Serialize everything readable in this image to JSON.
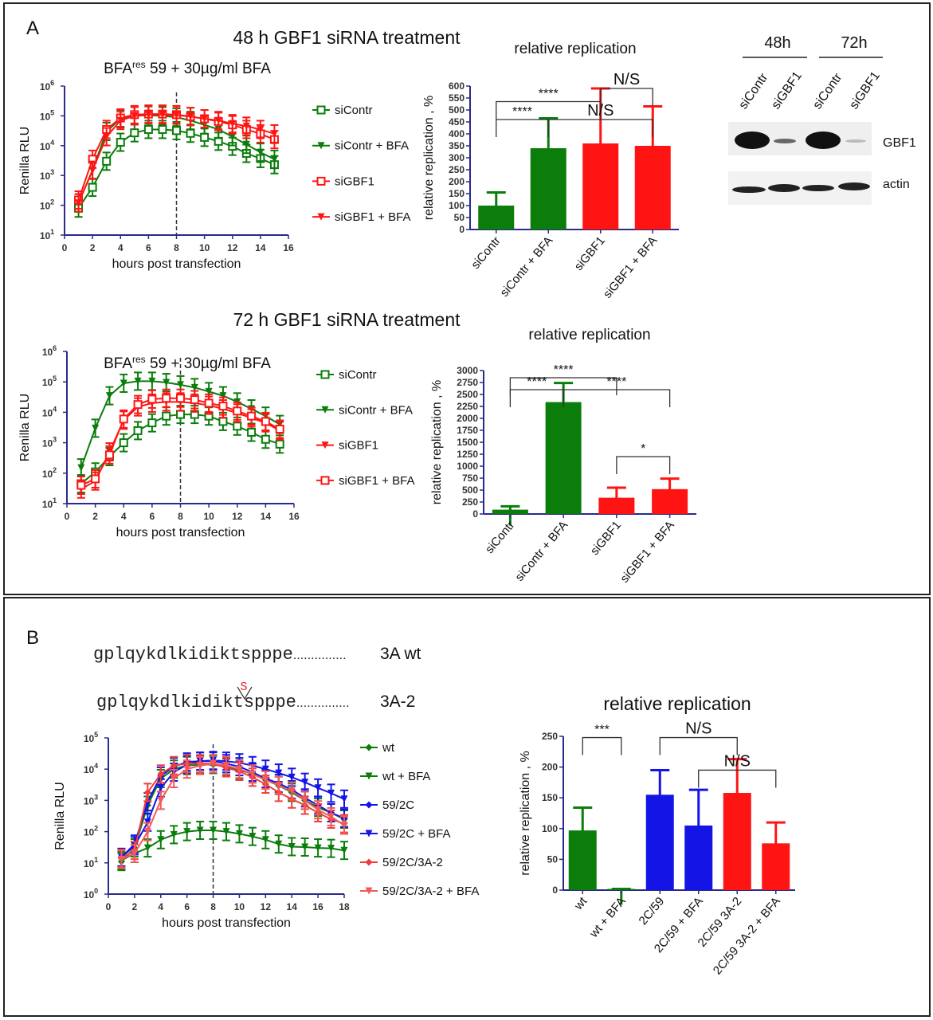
{
  "figure": {
    "panel_a_label": "A",
    "panel_b_label": "B",
    "title_48h": "48 h GBF1 siRNA treatment",
    "title_72h": "72 h GBF1 siRNA treatment",
    "colors": {
      "green": "#0a7d0a",
      "red": "#ff1414",
      "blue": "#1414e6",
      "light_red": "#f25050",
      "axis": "#2a2a8a"
    }
  },
  "western_blot": {
    "time_labels": [
      "48h",
      "72h"
    ],
    "lane_labels": [
      "siContr",
      "siGBF1",
      "siContr",
      "siGBF1"
    ],
    "row_labels": [
      "GBF1",
      "actin"
    ]
  },
  "sequences": {
    "wt_sequence": "gplqykdlkidiktspppe...............",
    "wt_label": "3A wt",
    "mut_prefix": "gplqykdlkidikt",
    "mut_insertion": "S",
    "mut_suffix": "spppe...............",
    "mut_label": "3A-2"
  },
  "chart_data": [
    {
      "type": "line",
      "title": "BFA",
      "title_sup": "res",
      "title_rest": " 59 + 30µg/ml BFA",
      "xlabel": "hours post transfection",
      "ylabel": "Renilla RLU",
      "xlim": [
        0,
        16
      ],
      "xticks": [
        0,
        2,
        4,
        6,
        8,
        10,
        12,
        14,
        16
      ],
      "ylim": [
        10,
        1000000
      ],
      "yscale": "log",
      "yticks_exp": [
        1,
        2,
        3,
        4,
        5,
        6
      ],
      "vline_x": 8,
      "x": [
        1,
        2,
        3,
        4,
        5,
        6,
        7,
        8,
        9,
        10,
        11,
        12,
        13,
        14,
        15
      ],
      "series": [
        {
          "name": "siContr",
          "color": "#0a7d0a",
          "marker": "square-open",
          "values": [
            80,
            400,
            3000,
            13000,
            27000,
            35000,
            35000,
            32000,
            26000,
            19000,
            14000,
            9500,
            5500,
            3700,
            2300
          ]
        },
        {
          "name": "siContr + BFA",
          "color": "#0a7d0a",
          "marker": "triangle-down",
          "values": [
            120,
            1500,
            30000,
            80000,
            100000,
            105000,
            100000,
            90000,
            70000,
            50000,
            35000,
            20000,
            11000,
            6000,
            3500
          ]
        },
        {
          "name": "siGBF1",
          "color": "#ff1414",
          "marker": "square-open",
          "values": [
            150,
            3500,
            35000,
            85000,
            110000,
            115000,
            115000,
            110000,
            95000,
            80000,
            65000,
            50000,
            35000,
            25000,
            16000
          ]
        },
        {
          "name": "siGBF1 + BFA",
          "color": "#ff1414",
          "marker": "triangle-down",
          "values": [
            120,
            1500,
            20000,
            70000,
            100000,
            110000,
            110000,
            105000,
            95000,
            80000,
            70000,
            55000,
            45000,
            35000,
            25000
          ]
        }
      ]
    },
    {
      "type": "bar",
      "title": "relative replication",
      "ylabel": "relative replication , %",
      "ylim": [
        0,
        600
      ],
      "ytick_step": 50,
      "categories": [
        "siContr",
        "siContr + BFA",
        "siGBF1",
        "siGBF1 + BFA"
      ],
      "colors": [
        "#0a7d0a",
        "#0a7d0a",
        "#ff1414",
        "#ff1414"
      ],
      "values": [
        100,
        340,
        360,
        350
      ],
      "error_upper": [
        155,
        465,
        590,
        515
      ],
      "significance": [
        {
          "from": 0,
          "to": 1,
          "level": 460,
          "label": "****"
        },
        {
          "from": 0,
          "to": 2,
          "level": 535,
          "label": "****"
        },
        {
          "from": 1,
          "to": 3,
          "level": 460,
          "label": "N/S"
        },
        {
          "from": 2,
          "to": 3,
          "level": 590,
          "label": "N/S"
        }
      ]
    },
    {
      "type": "line",
      "title": "BFA",
      "title_sup": "res",
      "title_rest": " 59 + 30µg/ml BFA",
      "xlabel": "hours post transfection",
      "ylabel": "Renilla RLU",
      "xlim": [
        0,
        16
      ],
      "xticks": [
        0,
        2,
        4,
        6,
        8,
        10,
        12,
        14,
        16
      ],
      "ylim": [
        10,
        1000000
      ],
      "yscale": "log",
      "yticks_exp": [
        1,
        2,
        3,
        4,
        5,
        6
      ],
      "vline_x": 8,
      "x": [
        1,
        2,
        3,
        4,
        5,
        6,
        7,
        8,
        9,
        10,
        11,
        12,
        13,
        14,
        15
      ],
      "series": [
        {
          "name": "siContr",
          "color": "#0a7d0a",
          "marker": "square-open",
          "values": [
            45,
            110,
            350,
            1000,
            2500,
            4500,
            7500,
            8500,
            8500,
            7500,
            5000,
            3500,
            2200,
            1300,
            900
          ]
        },
        {
          "name": "siContr + BFA",
          "color": "#0a7d0a",
          "marker": "triangle-down",
          "values": [
            150,
            3000,
            35000,
            90000,
            105000,
            105000,
            95000,
            80000,
            65000,
            48000,
            35000,
            22000,
            13000,
            7500,
            4000
          ]
        },
        {
          "name": "siGBF1",
          "color": "#ff1414",
          "marker": "triangle-down",
          "values": [
            30,
            55,
            500,
            5500,
            15000,
            20000,
            22000,
            22000,
            20000,
            17000,
            13000,
            9500,
            6500,
            4500,
            2500
          ]
        },
        {
          "name": "siGBF1 + BFA",
          "color": "#ff1414",
          "marker": "square-open",
          "values": [
            40,
            65,
            400,
            6000,
            18000,
            27000,
            29000,
            29000,
            26000,
            20000,
            16000,
            11000,
            7500,
            5000,
            2800
          ]
        }
      ]
    },
    {
      "type": "bar",
      "title": "relative replication",
      "ylabel": "relative replication , %",
      "ylim": [
        0,
        3000
      ],
      "ytick_step": 250,
      "categories": [
        "siContr",
        "siContr + BFA",
        "siGBF1",
        "siGBF1 + BFA"
      ],
      "colors": [
        "#0a7d0a",
        "#0a7d0a",
        "#ff1414",
        "#ff1414"
      ],
      "values": [
        90,
        2340,
        340,
        520
      ],
      "error_upper": [
        160,
        2740,
        550,
        740
      ],
      "significance": [
        {
          "from": 0,
          "to": 2,
          "level": 2850,
          "label": "****"
        },
        {
          "from": 0,
          "to": 1,
          "level": 2600,
          "label": "****"
        },
        {
          "from": 1,
          "to": 3,
          "level": 2600,
          "label": "****"
        },
        {
          "from": 2,
          "to": 3,
          "level": 1200,
          "label": "*"
        }
      ]
    },
    {
      "type": "line",
      "xlabel": "hours post transfection",
      "ylabel": "Renilla RLU",
      "xlim": [
        0,
        18
      ],
      "xticks": [
        0,
        2,
        4,
        6,
        8,
        10,
        12,
        14,
        16,
        18
      ],
      "ylim": [
        1,
        100000
      ],
      "yscale": "log",
      "yticks_exp": [
        0,
        1,
        2,
        3,
        4,
        5
      ],
      "vline_x": 8,
      "x": [
        1,
        2,
        3,
        4,
        5,
        6,
        7,
        8,
        9,
        10,
        11,
        12,
        13,
        14,
        15,
        16,
        17,
        18
      ],
      "series": [
        {
          "name": "wt",
          "color": "#0a7d0a",
          "marker": "diamond",
          "values": [
            11,
            30,
            700,
            5000,
            10000,
            13000,
            14000,
            14000,
            12000,
            9500,
            7000,
            4500,
            3000,
            1800,
            1000,
            600,
            400,
            250
          ]
        },
        {
          "name": "wt + BFA",
          "color": "#0a7d0a",
          "marker": "triangle-down",
          "values": [
            12,
            20,
            30,
            55,
            80,
            100,
            110,
            110,
            100,
            85,
            70,
            55,
            40,
            33,
            32,
            30,
            29,
            25
          ]
        },
        {
          "name": "59/2C",
          "color": "#1414e6",
          "marker": "diamond",
          "values": [
            15,
            40,
            900,
            6000,
            12000,
            17000,
            18000,
            18000,
            15000,
            12000,
            8000,
            5000,
            3500,
            2200,
            1200,
            700,
            400,
            270
          ]
        },
        {
          "name": "59/2C + BFA",
          "color": "#1414e6",
          "marker": "triangle-down",
          "values": [
            15,
            35,
            200,
            2500,
            8000,
            14000,
            18000,
            19000,
            18000,
            16000,
            13000,
            10000,
            7500,
            5500,
            3800,
            2500,
            1700,
            1100
          ]
        },
        {
          "name": "59/2C/3A-2",
          "color": "#f23c3c",
          "marker": "diamond",
          "values": [
            14,
            25,
            1800,
            7000,
            13000,
            15000,
            15000,
            15000,
            11000,
            8500,
            5500,
            3300,
            1800,
            1100,
            700,
            400,
            250,
            180
          ]
        },
        {
          "name": "59/2C/3A-2 + BFA",
          "color": "#f25a5a",
          "marker": "triangle-down",
          "values": [
            13,
            20,
            100,
            1000,
            5000,
            10000,
            13000,
            15000,
            13000,
            10000,
            7000,
            4500,
            3000,
            2000,
            1000,
            500,
            300,
            160
          ]
        }
      ]
    },
    {
      "type": "bar",
      "title": "relative replication",
      "ylabel": "relative replication , %",
      "ylim": [
        0,
        250
      ],
      "ytick_step": 50,
      "categories": [
        "wt",
        "wt + BFA",
        "2C/59",
        "2C/59 + BFA",
        "2C/59 3A-2",
        "2C/59 3A-2 + BFA"
      ],
      "colors": [
        "#0a7d0a",
        "#0a7d0a",
        "#1414e6",
        "#1414e6",
        "#ff1414",
        "#ff1414"
      ],
      "values": [
        97,
        2,
        155,
        105,
        158,
        76
      ],
      "error_upper": [
        134,
        2,
        195,
        163,
        213,
        110
      ],
      "significance": [
        {
          "from": 0,
          "to": 1,
          "level": 248,
          "label": "***"
        },
        {
          "from": 2,
          "to": 4,
          "level": 248,
          "label": "N/S"
        },
        {
          "from": 3,
          "to": 5,
          "level": 195,
          "label": "N/S"
        }
      ]
    }
  ]
}
